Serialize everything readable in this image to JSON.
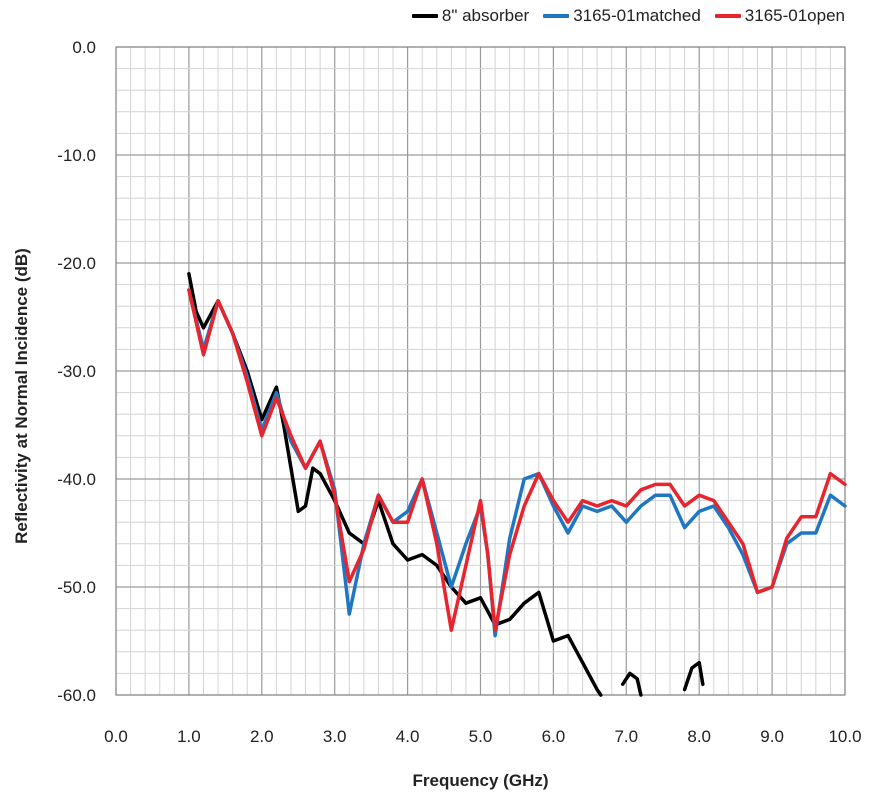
{
  "chart_data": {
    "type": "line",
    "title": "",
    "xlabel": "Frequency (GHz)",
    "ylabel": "Reflectivity at Normal Incidence (dB)",
    "xlim": [
      0,
      10
    ],
    "ylim": [
      -60,
      0
    ],
    "x_ticks": [
      "0.0",
      "1.0",
      "2.0",
      "3.0",
      "4.0",
      "5.0",
      "6.0",
      "7.0",
      "8.0",
      "9.0",
      "10.0"
    ],
    "y_ticks": [
      "0.0",
      "-10.0",
      "-20.0",
      "-30.0",
      "-40.0",
      "-50.0",
      "-60.0"
    ],
    "grid": true,
    "legend_position": "top-right",
    "series": [
      {
        "name": "8\" absorber",
        "color": "#000000",
        "x": [
          1.0,
          1.1,
          1.2,
          1.4,
          1.6,
          1.8,
          2.0,
          2.1,
          2.2,
          2.3,
          2.4,
          2.5,
          2.6,
          2.7,
          2.8,
          3.0,
          3.2,
          3.4,
          3.6,
          3.8,
          4.0,
          4.2,
          4.4,
          4.6,
          4.8,
          5.0,
          5.2,
          5.4,
          5.6,
          5.8,
          6.0,
          6.2,
          6.4,
          6.6,
          6.65,
          null,
          6.95,
          7.05,
          7.15,
          7.2,
          null,
          7.8,
          7.9,
          8.0,
          8.05,
          null,
          8.8
        ],
        "y": [
          -21.0,
          -24.5,
          -26.0,
          -23.5,
          -26.5,
          -30.0,
          -34.5,
          -33.0,
          -31.5,
          -35.0,
          -39.0,
          -43.0,
          -42.5,
          -39.0,
          -39.5,
          -42.0,
          -45.0,
          -46.0,
          -42.0,
          -46.0,
          -47.5,
          -47.0,
          -48.0,
          -50.0,
          -51.5,
          -51.0,
          -53.5,
          -53.0,
          -51.5,
          -50.5,
          -55.0,
          -54.5,
          -57.0,
          -59.5,
          -60.0,
          null,
          -59.0,
          -58.0,
          -58.5,
          -60.0,
          null,
          -59.5,
          -57.5,
          -57.0,
          -59.0,
          null,
          -59.5
        ]
      },
      {
        "name": "3165-01matched",
        "color": "#1f77c4",
        "x": [
          1.0,
          1.2,
          1.4,
          1.6,
          1.8,
          2.0,
          2.2,
          2.4,
          2.6,
          2.8,
          3.0,
          3.2,
          3.4,
          3.6,
          3.8,
          4.0,
          4.2,
          4.4,
          4.6,
          4.8,
          5.0,
          5.1,
          5.2,
          5.4,
          5.6,
          5.8,
          6.0,
          6.2,
          6.4,
          6.6,
          6.8,
          7.0,
          7.2,
          7.4,
          7.6,
          7.8,
          8.0,
          8.2,
          8.4,
          8.6,
          8.8,
          9.0,
          9.2,
          9.4,
          9.6,
          9.8,
          10.0
        ],
        "y": [
          -22.5,
          -28.0,
          -23.5,
          -26.5,
          -30.5,
          -35.5,
          -32.0,
          -36.5,
          -39.0,
          -36.5,
          -41.0,
          -52.5,
          -46.0,
          -41.5,
          -44.0,
          -43.0,
          -40.0,
          -45.0,
          -50.0,
          -46.0,
          -42.5,
          -47.0,
          -54.5,
          -45.5,
          -40.0,
          -39.5,
          -42.5,
          -45.0,
          -42.5,
          -43.0,
          -42.5,
          -44.0,
          -42.5,
          -41.5,
          -41.5,
          -44.5,
          -43.0,
          -42.5,
          -44.5,
          -47.0,
          -50.5,
          -50.0,
          -46.0,
          -45.0,
          -45.0,
          -41.5,
          -42.5
        ]
      },
      {
        "name": "3165-01open",
        "color": "#e8242d",
        "x": [
          1.0,
          1.2,
          1.4,
          1.6,
          1.8,
          2.0,
          2.2,
          2.4,
          2.6,
          2.8,
          3.0,
          3.2,
          3.4,
          3.6,
          3.8,
          4.0,
          4.2,
          4.4,
          4.6,
          4.8,
          5.0,
          5.1,
          5.2,
          5.4,
          5.6,
          5.8,
          6.0,
          6.2,
          6.4,
          6.6,
          6.8,
          7.0,
          7.2,
          7.4,
          7.6,
          7.8,
          8.0,
          8.2,
          8.4,
          8.6,
          8.8,
          9.0,
          9.2,
          9.4,
          9.6,
          9.8,
          10.0
        ],
        "y": [
          -22.5,
          -28.5,
          -23.5,
          -26.5,
          -31.0,
          -36.0,
          -32.5,
          -36.0,
          -39.0,
          -36.5,
          -41.5,
          -49.5,
          -46.5,
          -41.5,
          -44.0,
          -44.0,
          -40.0,
          -46.0,
          -54.0,
          -48.0,
          -42.0,
          -47.0,
          -54.0,
          -47.0,
          -42.5,
          -39.5,
          -42.0,
          -44.0,
          -42.0,
          -42.5,
          -42.0,
          -42.5,
          -41.0,
          -40.5,
          -40.5,
          -42.5,
          -41.5,
          -42.0,
          -44.0,
          -46.0,
          -50.5,
          -50.0,
          -45.5,
          -43.5,
          -43.5,
          -39.5,
          -40.5
        ]
      }
    ]
  }
}
